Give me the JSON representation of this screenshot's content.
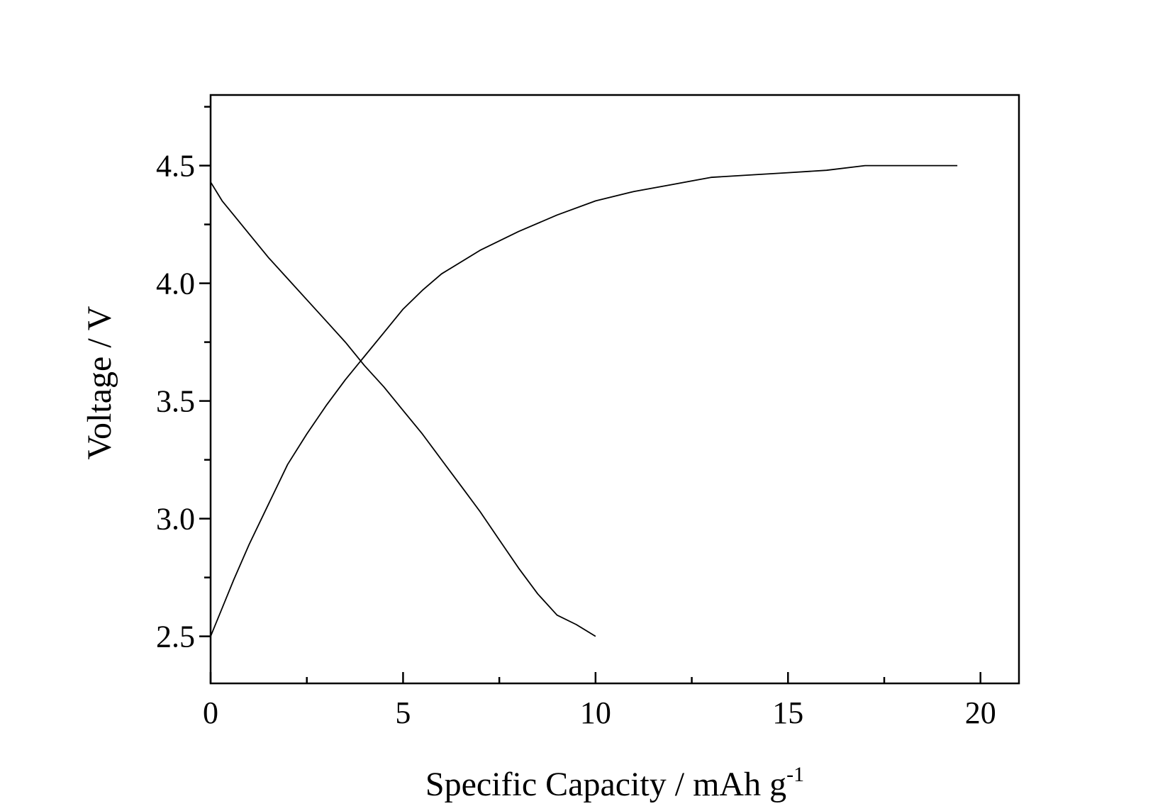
{
  "chart_data": {
    "type": "line",
    "xlabel": "Specific Capacity / mAh g",
    "xlabel_superscript": "-1",
    "ylabel": "Voltage / V",
    "xlim": [
      0,
      21
    ],
    "ylim": [
      2.3,
      4.8
    ],
    "x_major_ticks": [
      0,
      5,
      10,
      15,
      20
    ],
    "x_tick_labels": [
      "0",
      "5",
      "10",
      "15",
      "20"
    ],
    "x_minor_ticks": [
      2.5,
      7.5,
      12.5,
      17.5
    ],
    "y_major_ticks": [
      2.5,
      3.0,
      3.5,
      4.0,
      4.5
    ],
    "y_tick_labels": [
      "2.5",
      "3.0",
      "3.5",
      "4.0",
      "4.5"
    ],
    "y_minor_ticks": [
      2.75,
      3.25,
      3.75,
      4.25,
      4.75
    ],
    "grid": false,
    "series": [
      {
        "x": [
          0,
          0.3,
          0.6,
          1.0,
          1.5,
          2.0,
          2.5,
          3.0,
          3.5,
          4.0,
          4.5,
          5.0,
          5.5,
          6.0,
          6.5,
          7.0,
          7.5,
          8.0,
          8.5,
          9.0,
          9.5,
          10.0
        ],
        "y": [
          4.43,
          4.35,
          4.29,
          4.21,
          4.11,
          4.02,
          3.93,
          3.84,
          3.75,
          3.65,
          3.56,
          3.46,
          3.36,
          3.25,
          3.14,
          3.03,
          2.91,
          2.79,
          2.68,
          2.59,
          2.55,
          2.5
        ]
      },
      {
        "x": [
          0,
          0.3,
          0.6,
          1.0,
          1.5,
          2.0,
          2.5,
          3.0,
          3.5,
          4.0,
          4.5,
          5.0,
          5.5,
          6.0,
          7.0,
          8.0,
          9.0,
          10.0,
          11.0,
          12.0,
          13.0,
          14.0,
          15.0,
          16.0,
          17.0,
          18.0,
          19.4
        ],
        "y": [
          2.5,
          2.62,
          2.74,
          2.89,
          3.06,
          3.23,
          3.36,
          3.48,
          3.59,
          3.69,
          3.79,
          3.89,
          3.97,
          4.04,
          4.14,
          4.22,
          4.29,
          4.35,
          4.39,
          4.42,
          4.45,
          4.46,
          4.47,
          4.48,
          4.5,
          4.5,
          4.5
        ]
      }
    ]
  }
}
